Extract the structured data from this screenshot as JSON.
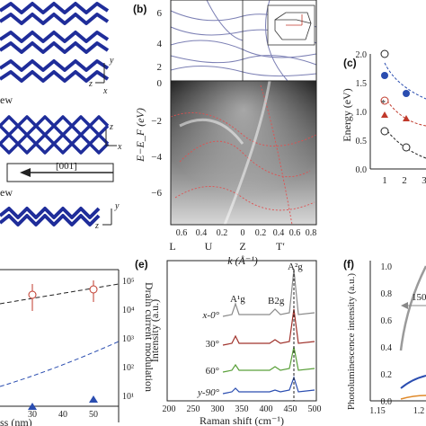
{
  "colors": {
    "crystal": "#1f2d9a",
    "band": "#7b7fb4",
    "ink": "#222222"
  },
  "panel_a": {
    "view_label_1": "ew",
    "view_label_2": "ew",
    "direction": "[001]",
    "axis_x": "x",
    "axis_y": "y",
    "axis_z": "z"
  },
  "panel_b": {
    "label": "(b)",
    "ylabel": "E−E_F (eV)",
    "xlabel": "k (Å⁻¹)",
    "points": [
      "L",
      "U",
      "Z",
      "T′"
    ],
    "xticks": [
      "0.6",
      "0.4",
      "0.2",
      "0",
      "0.2",
      "0.4",
      "0.6",
      "0.8"
    ],
    "yticks": [
      "6",
      "4",
      "2",
      "0",
      "−2",
      "−4",
      "−6"
    ]
  },
  "panel_c": {
    "label": "(c)",
    "ylabel": "Energy (eV)",
    "yticks": [
      "2.0",
      "1.5",
      "1.0",
      "0.5",
      "0.0"
    ],
    "xticks": [
      "1",
      "2",
      "3"
    ]
  },
  "panel_d": {
    "xlabel_fragment": "ss (nm)",
    "right_ylabel": "Drain current modulation",
    "xticks": [
      "30",
      "40",
      "50"
    ],
    "right_ticks": [
      "10⁵",
      "10⁴",
      "10³",
      "10²",
      "10¹"
    ]
  },
  "panel_e": {
    "label": "(e)",
    "ylabel": "Intensity (a.u.)",
    "xlabel": "Raman shift (cm⁻¹)",
    "xticks": [
      "200",
      "250",
      "300",
      "350",
      "400",
      "450",
      "500"
    ],
    "peaks": [
      "A¹g",
      "B2g",
      "A²g"
    ],
    "angles": [
      "x-0°",
      "30°",
      "60°",
      "y-90°"
    ]
  },
  "panel_f": {
    "label": "(f)",
    "ylabel": "Photoluminescence intensity (a.u.)",
    "yticks": [
      "1.0",
      "0.8",
      "0.6",
      "0.4",
      "0.2",
      "0.0"
    ],
    "xticks": [
      "1.15",
      "1.2"
    ],
    "annotation": "150"
  }
}
